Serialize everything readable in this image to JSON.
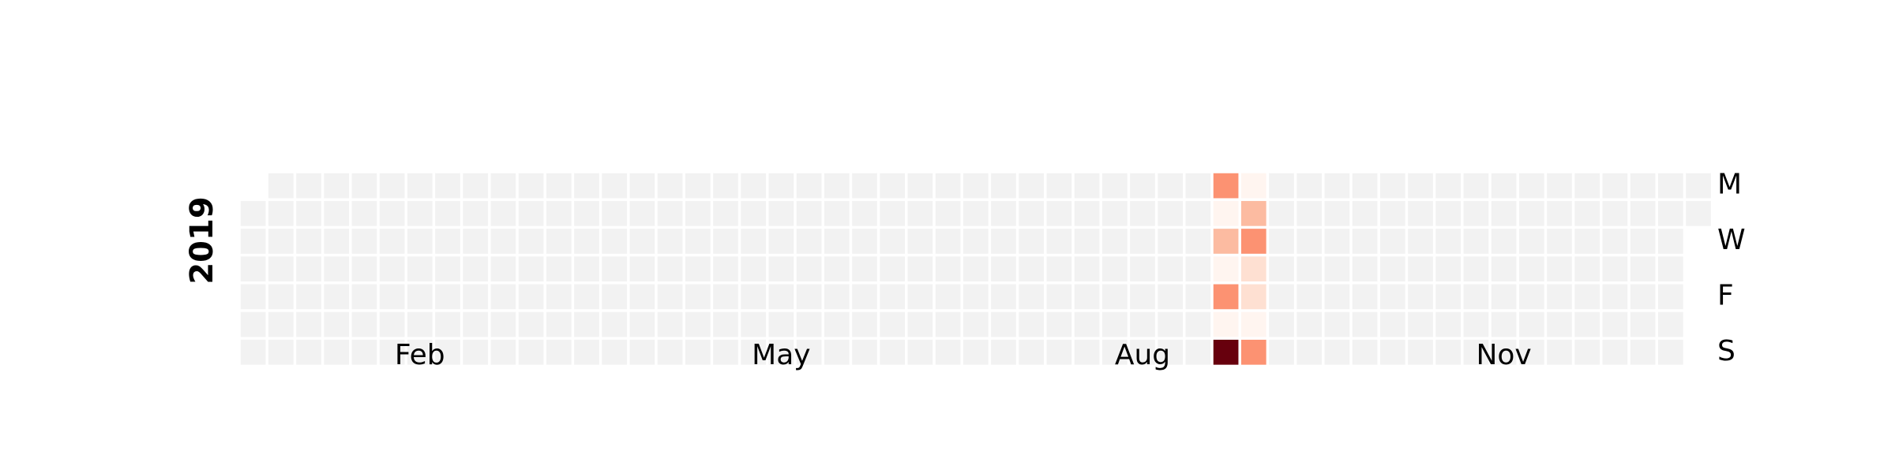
{
  "colors": {
    "empty": "#f2f2f2",
    "scale": [
      "#fff5f0",
      "#fee0d2",
      "#fcbba1",
      "#fc9272",
      "#fb6a4a",
      "#ef3b2c",
      "#cb181d",
      "#a50f15",
      "#67000d"
    ]
  },
  "chart_data": {
    "type": "heatmap",
    "title": "",
    "year_label": "2019",
    "x_tick_labels": [
      {
        "label": "Feb",
        "week": 6.5
      },
      {
        "label": "May",
        "week": 19.5
      },
      {
        "label": "Aug",
        "week": 32.5
      },
      {
        "label": "Nov",
        "week": 45.5
      }
    ],
    "y_tick_labels": [
      {
        "label": "M",
        "day": 0
      },
      {
        "label": "W",
        "day": 2
      },
      {
        "label": "F",
        "day": 4
      },
      {
        "label": "S",
        "day": 6
      }
    ],
    "weeks": 53,
    "days_per_week": 7,
    "missing_cells": [
      [
        0,
        0
      ],
      [
        52,
        2
      ],
      [
        52,
        3
      ],
      [
        52,
        4
      ],
      [
        52,
        5
      ],
      [
        52,
        6
      ]
    ],
    "values": [
      {
        "week": 35,
        "day": 0,
        "value": 0.35
      },
      {
        "week": 35,
        "day": 1,
        "value": 0.05
      },
      {
        "week": 35,
        "day": 2,
        "value": 0.28
      },
      {
        "week": 35,
        "day": 3,
        "value": 0.05
      },
      {
        "week": 35,
        "day": 4,
        "value": 0.35
      },
      {
        "week": 35,
        "day": 5,
        "value": 0.05
      },
      {
        "week": 35,
        "day": 6,
        "value": 1.0
      },
      {
        "week": 36,
        "day": 0,
        "value": 0.05
      },
      {
        "week": 36,
        "day": 1,
        "value": 0.25
      },
      {
        "week": 36,
        "day": 2,
        "value": 0.42
      },
      {
        "week": 36,
        "day": 3,
        "value": 0.15
      },
      {
        "week": 36,
        "day": 4,
        "value": 0.17
      },
      {
        "week": 36,
        "day": 5,
        "value": 0.05
      },
      {
        "week": 36,
        "day": 6,
        "value": 0.35
      }
    ]
  }
}
